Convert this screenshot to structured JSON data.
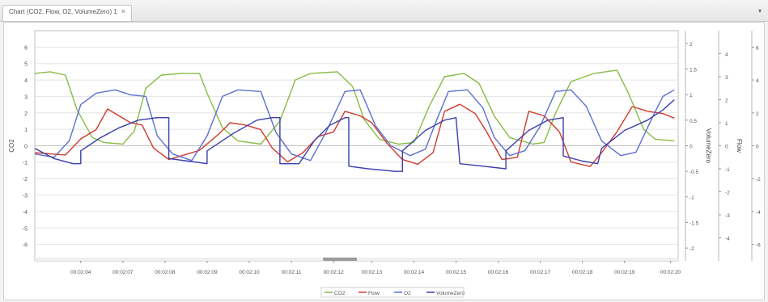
{
  "tab": {
    "label": "Chart (CO2, Flow, O2, VolumeZero) 1",
    "close_glyph": "×"
  },
  "menu": {
    "glyph": "▾"
  },
  "chart_data": {
    "type": "line",
    "x": [
      "00:02:04",
      "00:02:07",
      "00:02:08",
      "00:02:09",
      "00:02:10",
      "00:02:11",
      "00:02:12",
      "00:02:13",
      "00:02:14",
      "00:02:15",
      "00:02:16",
      "00:02:17",
      "00:02:18",
      "00:02:19",
      "00:02:20"
    ],
    "xlabel": "",
    "axes": [
      {
        "id": "co2",
        "label": "CO2",
        "side": "left",
        "ylim": [
          -7,
          7
        ],
        "ticks": [
          6,
          5,
          4,
          3,
          2,
          1,
          0,
          -1,
          -2,
          -3,
          -4,
          -5,
          -6
        ]
      },
      {
        "id": "volume",
        "label": "VolumeZero",
        "side": "right",
        "ylim": [
          -2.25,
          2.25
        ],
        "ticks": [
          2,
          1.5,
          1,
          0.5,
          0,
          -0.5,
          -1,
          -1.5,
          -2
        ]
      },
      {
        "id": "flow",
        "label": "Flow",
        "side": "right",
        "ylim": [
          -5,
          5
        ],
        "ticks": [
          4,
          3,
          2,
          1,
          0,
          -1,
          -2,
          -3,
          -4
        ]
      },
      {
        "id": "o2",
        "label": "O2",
        "side": "right",
        "ylim": [
          -7,
          7
        ],
        "ticks": [
          6,
          4,
          2,
          0,
          -2,
          -4,
          -6
        ]
      }
    ],
    "series": [
      {
        "name": "CO2",
        "axis": "co2",
        "color": "#88bb44",
        "values": [
          [
            0,
            4.4
          ],
          [
            0.4,
            4.5
          ],
          [
            0.8,
            4.3
          ],
          [
            1.1,
            2.2
          ],
          [
            1.5,
            0.5
          ],
          [
            1.8,
            0.2
          ],
          [
            2.3,
            0.1
          ],
          [
            2.6,
            0.9
          ],
          [
            2.9,
            3.5
          ],
          [
            3.3,
            4.3
          ],
          [
            3.8,
            4.4
          ],
          [
            4.3,
            4.4
          ],
          [
            4.5,
            3.2
          ],
          [
            4.9,
            1.1
          ],
          [
            5.3,
            0.3
          ],
          [
            5.9,
            0.1
          ],
          [
            6.4,
            1.5
          ],
          [
            6.8,
            4.0
          ],
          [
            7.2,
            4.4
          ],
          [
            7.9,
            4.5
          ],
          [
            8.3,
            3.6
          ],
          [
            8.6,
            1.6
          ],
          [
            9.0,
            0.4
          ],
          [
            9.5,
            0.1
          ],
          [
            9.9,
            0.2
          ],
          [
            10.3,
            2.4
          ],
          [
            10.7,
            4.2
          ],
          [
            11.2,
            4.4
          ],
          [
            11.6,
            3.8
          ],
          [
            12.0,
            1.8
          ],
          [
            12.4,
            0.5
          ],
          [
            13.0,
            0.1
          ],
          [
            13.3,
            0.2
          ],
          [
            13.6,
            2.0
          ],
          [
            14.0,
            3.9
          ],
          [
            14.6,
            4.4
          ],
          [
            15.2,
            4.6
          ],
          [
            15.5,
            3.2
          ],
          [
            15.9,
            1.0
          ],
          [
            16.2,
            0.4
          ],
          [
            16.7,
            0.3
          ]
        ]
      },
      {
        "name": "Flow",
        "axis": "flow",
        "color": "#d13a2e",
        "values": [
          [
            0,
            -0.3
          ],
          [
            0.8,
            -0.4
          ],
          [
            1.2,
            0.3
          ],
          [
            1.6,
            0.7
          ],
          [
            1.9,
            1.6
          ],
          [
            2.2,
            1.3
          ],
          [
            2.5,
            1.0
          ],
          [
            2.8,
            0.9
          ],
          [
            3.1,
            -0.1
          ],
          [
            3.5,
            -0.6
          ],
          [
            3.9,
            -0.4
          ],
          [
            4.3,
            -0.2
          ],
          [
            4.8,
            0.5
          ],
          [
            5.1,
            1.0
          ],
          [
            5.5,
            0.9
          ],
          [
            5.9,
            0.7
          ],
          [
            6.2,
            -0.1
          ],
          [
            6.6,
            -0.7
          ],
          [
            7.0,
            -0.3
          ],
          [
            7.4,
            0.4
          ],
          [
            7.8,
            0.6
          ],
          [
            8.1,
            1.5
          ],
          [
            8.5,
            1.3
          ],
          [
            8.8,
            1.0
          ],
          [
            9.2,
            0.1
          ],
          [
            9.6,
            -0.6
          ],
          [
            10.0,
            -0.8
          ],
          [
            10.4,
            -0.3
          ],
          [
            10.7,
            1.5
          ],
          [
            11.1,
            1.8
          ],
          [
            11.5,
            1.4
          ],
          [
            11.8,
            0.6
          ],
          [
            12.2,
            -0.6
          ],
          [
            12.6,
            -0.5
          ],
          [
            12.9,
            1.5
          ],
          [
            13.3,
            1.3
          ],
          [
            13.7,
            0.6
          ],
          [
            14.0,
            -0.7
          ],
          [
            14.5,
            -0.9
          ],
          [
            14.8,
            -0.3
          ],
          [
            15.2,
            0.6
          ],
          [
            15.6,
            1.7
          ],
          [
            16.0,
            1.5
          ],
          [
            16.4,
            1.4
          ],
          [
            16.7,
            1.2
          ]
        ]
      },
      {
        "name": "O2",
        "axis": "o2",
        "color": "#5b6fcf",
        "values": [
          [
            0,
            -0.5
          ],
          [
            0.5,
            -0.7
          ],
          [
            0.9,
            0.3
          ],
          [
            1.2,
            2.5
          ],
          [
            1.6,
            3.2
          ],
          [
            2.1,
            3.4
          ],
          [
            2.5,
            3.1
          ],
          [
            2.9,
            3.0
          ],
          [
            3.2,
            0.6
          ],
          [
            3.6,
            -0.5
          ],
          [
            4.1,
            -0.9
          ],
          [
            4.5,
            0.6
          ],
          [
            4.9,
            3.0
          ],
          [
            5.3,
            3.4
          ],
          [
            5.9,
            3.3
          ],
          [
            6.3,
            0.8
          ],
          [
            6.7,
            -0.5
          ],
          [
            7.2,
            -0.9
          ],
          [
            7.6,
            0.8
          ],
          [
            8.1,
            3.3
          ],
          [
            8.5,
            3.4
          ],
          [
            8.9,
            1.2
          ],
          [
            9.3,
            0.0
          ],
          [
            9.8,
            -0.6
          ],
          [
            10.2,
            -0.2
          ],
          [
            10.5,
            1.6
          ],
          [
            10.8,
            3.3
          ],
          [
            11.3,
            3.4
          ],
          [
            11.7,
            2.3
          ],
          [
            12.0,
            0.5
          ],
          [
            12.4,
            -0.6
          ],
          [
            12.8,
            -0.3
          ],
          [
            13.2,
            1.2
          ],
          [
            13.6,
            3.3
          ],
          [
            14.0,
            3.4
          ],
          [
            14.4,
            2.4
          ],
          [
            14.8,
            0.3
          ],
          [
            15.3,
            -0.6
          ],
          [
            15.7,
            -0.4
          ],
          [
            16.1,
            1.6
          ],
          [
            16.4,
            3.0
          ],
          [
            16.7,
            3.4
          ]
        ]
      },
      {
        "name": "VolumeZero",
        "axis": "volume",
        "color": "#3a3fae",
        "values": [
          [
            0,
            -0.05
          ],
          [
            0.5,
            -0.25
          ],
          [
            1.0,
            -0.35
          ],
          [
            1.2,
            -0.35
          ],
          [
            1.2,
            -0.1
          ],
          [
            1.7,
            0.15
          ],
          [
            2.2,
            0.35
          ],
          [
            2.7,
            0.5
          ],
          [
            3.2,
            0.55
          ],
          [
            3.5,
            0.55
          ],
          [
            3.5,
            -0.25
          ],
          [
            4.0,
            -0.3
          ],
          [
            4.5,
            -0.35
          ],
          [
            4.5,
            -0.1
          ],
          [
            5.2,
            0.25
          ],
          [
            5.8,
            0.5
          ],
          [
            6.2,
            0.55
          ],
          [
            6.4,
            0.55
          ],
          [
            6.4,
            -0.35
          ],
          [
            6.9,
            -0.35
          ],
          [
            7.3,
            0.1
          ],
          [
            7.7,
            0.4
          ],
          [
            8.1,
            0.55
          ],
          [
            8.2,
            0.55
          ],
          [
            8.2,
            -0.4
          ],
          [
            8.7,
            -0.45
          ],
          [
            9.4,
            -0.5
          ],
          [
            9.6,
            -0.5
          ],
          [
            9.6,
            -0.1
          ],
          [
            10.2,
            0.3
          ],
          [
            10.7,
            0.5
          ],
          [
            11.0,
            0.55
          ],
          [
            11.1,
            -0.35
          ],
          [
            11.7,
            -0.4
          ],
          [
            12.3,
            -0.45
          ],
          [
            12.3,
            -0.1
          ],
          [
            12.9,
            0.3
          ],
          [
            13.4,
            0.5
          ],
          [
            13.8,
            0.55
          ],
          [
            13.8,
            -0.2
          ],
          [
            14.3,
            -0.3
          ],
          [
            14.7,
            -0.35
          ],
          [
            14.8,
            -0.05
          ],
          [
            15.4,
            0.3
          ],
          [
            16.0,
            0.5
          ],
          [
            16.4,
            0.7
          ],
          [
            16.7,
            0.9
          ]
        ]
      }
    ],
    "x_range": [
      0,
      16.8
    ],
    "x_tick_positions": [
      1.2,
      2.3,
      3.4,
      4.5,
      5.6,
      6.7,
      7.8,
      8.8,
      9.9,
      11.0,
      12.1,
      13.2,
      14.3,
      15.4,
      16.6
    ],
    "grid": true,
    "legend": "bottom-center"
  }
}
